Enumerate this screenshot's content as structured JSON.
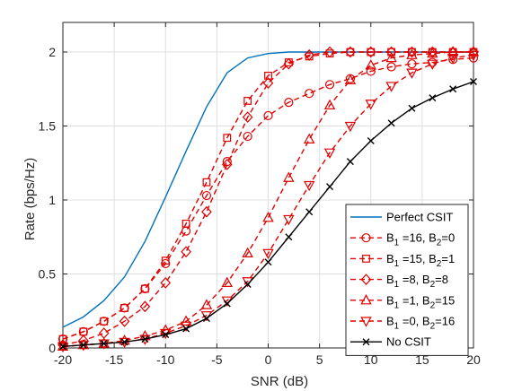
{
  "chart_data": {
    "type": "line",
    "xlabel": "SNR (dB)",
    "ylabel": "Rate (bps/Hz)",
    "xlim": [
      -20,
      20
    ],
    "ylim": [
      0,
      2.2
    ],
    "xticks": [
      -20,
      -15,
      -10,
      -5,
      0,
      5,
      10,
      15,
      20
    ],
    "yticks": [
      0,
      0.5,
      1,
      1.5,
      2
    ],
    "grid": true,
    "legend_position": "bottom-right",
    "x": [
      -20,
      -18,
      -16,
      -14,
      -12,
      -10,
      -8,
      -6,
      -4,
      -2,
      0,
      2,
      4,
      6,
      8,
      10,
      12,
      14,
      16,
      18,
      20
    ],
    "series": [
      {
        "name": "Perfect CSIT",
        "legend": {
          "main": "Perfect CSIT"
        },
        "color": "#0072BD",
        "dash": "solid",
        "marker": "none",
        "values": [
          0.14,
          0.21,
          0.32,
          0.48,
          0.72,
          1.02,
          1.33,
          1.63,
          1.86,
          1.96,
          1.99,
          2.0,
          2.0,
          2.0,
          2.0,
          2.0,
          2.0,
          2.0,
          2.0,
          2.0,
          2.0
        ]
      },
      {
        "name": "B_1 =16, B_2=0",
        "legend": {
          "pre": "B",
          "sub1": "1",
          "mid": " =16, B",
          "sub2": "2",
          "post": "=0"
        },
        "color": "#E00000",
        "dash": "dashed",
        "marker": "circle",
        "values": [
          0.06,
          0.11,
          0.18,
          0.27,
          0.4,
          0.57,
          0.79,
          1.03,
          1.26,
          1.43,
          1.57,
          1.66,
          1.72,
          1.78,
          1.82,
          1.87,
          1.9,
          1.92,
          1.93,
          1.95,
          1.96
        ]
      },
      {
        "name": "B_1 =15, B_2=1",
        "legend": {
          "pre": "B",
          "sub1": "1",
          "mid": " =15, B",
          "sub2": "2",
          "post": "=1"
        },
        "color": "#E00000",
        "dash": "dashed",
        "marker": "square",
        "values": [
          0.06,
          0.11,
          0.18,
          0.27,
          0.4,
          0.59,
          0.84,
          1.12,
          1.42,
          1.67,
          1.84,
          1.93,
          1.97,
          1.99,
          2.0,
          2.0,
          2.0,
          2.0,
          2.0,
          2.0,
          2.0
        ]
      },
      {
        "name": "B_1 =8, B_2=8",
        "legend": {
          "pre": "B",
          "sub1": "1",
          "mid": " =8, B",
          "sub2": "2",
          "post": "=8"
        },
        "color": "#E00000",
        "dash": "dashed",
        "marker": "diamond",
        "values": [
          0.02,
          0.05,
          0.1,
          0.18,
          0.28,
          0.44,
          0.65,
          0.92,
          1.24,
          1.56,
          1.79,
          1.92,
          1.98,
          2.0,
          2.0,
          2.0,
          2.0,
          2.0,
          2.0,
          2.0,
          2.0
        ]
      },
      {
        "name": "B_1 =1, B_2=15",
        "legend": {
          "pre": "B",
          "sub1": "1",
          "mid": " =1, B",
          "sub2": "2",
          "post": "=15"
        },
        "color": "#E00000",
        "dash": "dashed",
        "marker": "triangle-up",
        "values": [
          0.01,
          0.02,
          0.03,
          0.05,
          0.08,
          0.12,
          0.18,
          0.29,
          0.44,
          0.64,
          0.88,
          1.15,
          1.41,
          1.64,
          1.81,
          1.91,
          1.96,
          1.98,
          1.99,
          2.0,
          2.0
        ]
      },
      {
        "name": "B_1 =0, B_2=16",
        "legend": {
          "pre": "B",
          "sub1": "1",
          "mid": " =0, B",
          "sub2": "2",
          "post": "=16"
        },
        "color": "#E00000",
        "dash": "dashed",
        "marker": "triangle-down",
        "values": [
          0.01,
          0.02,
          0.03,
          0.04,
          0.06,
          0.1,
          0.15,
          0.22,
          0.32,
          0.45,
          0.64,
          0.87,
          1.1,
          1.32,
          1.5,
          1.65,
          1.77,
          1.86,
          1.92,
          1.96,
          1.98
        ]
      },
      {
        "name": "No CSIT",
        "legend": {
          "main": "No CSIT"
        },
        "color": "#000000",
        "dash": "solid",
        "marker": "x",
        "values": [
          0.01,
          0.02,
          0.03,
          0.04,
          0.06,
          0.09,
          0.13,
          0.2,
          0.3,
          0.43,
          0.58,
          0.75,
          0.92,
          1.09,
          1.26,
          1.4,
          1.52,
          1.62,
          1.69,
          1.75,
          1.8
        ]
      }
    ]
  }
}
